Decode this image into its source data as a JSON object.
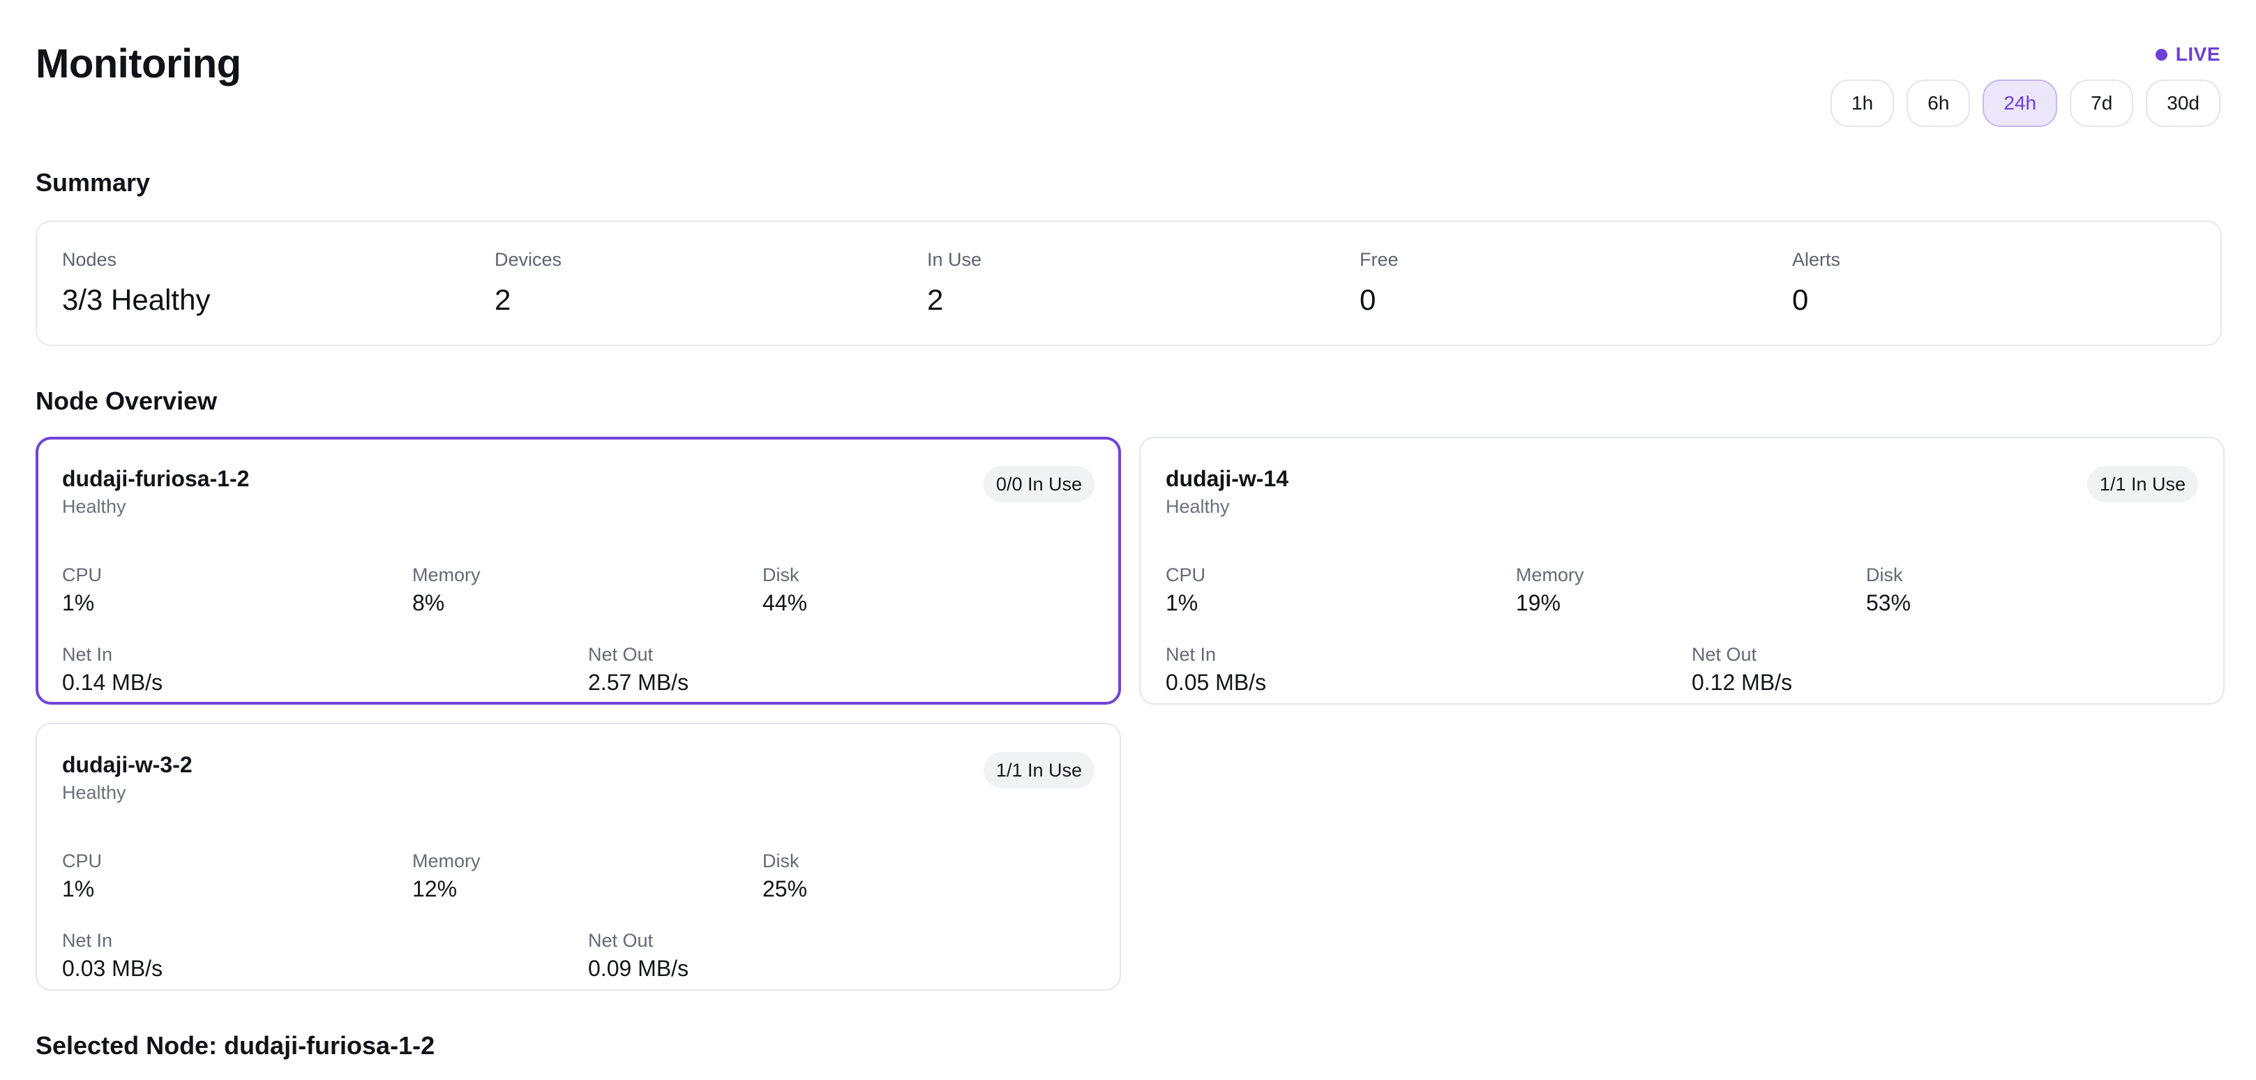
{
  "header": {
    "title": "Monitoring",
    "live_label": "LIVE",
    "accent_color": "#6d3fd6"
  },
  "time_ranges": {
    "options": [
      "1h",
      "6h",
      "24h",
      "7d",
      "30d"
    ],
    "selected": "24h"
  },
  "summary": {
    "heading": "Summary",
    "items": [
      {
        "label": "Nodes",
        "value": "3/3 Healthy"
      },
      {
        "label": "Devices",
        "value": "2"
      },
      {
        "label": "In Use",
        "value": "2"
      },
      {
        "label": "Free",
        "value": "0"
      },
      {
        "label": "Alerts",
        "value": "0"
      }
    ]
  },
  "node_overview": {
    "heading": "Node Overview",
    "metric_labels": {
      "cpu": "CPU",
      "memory": "Memory",
      "disk": "Disk",
      "net_in": "Net In",
      "net_out": "Net Out"
    },
    "nodes": [
      {
        "name": "dudaji-furiosa-1-2",
        "status": "Healthy",
        "badge": "0/0 In Use",
        "selected": true,
        "cpu": "1%",
        "memory": "8%",
        "disk": "44%",
        "net_in": "0.14 MB/s",
        "net_out": "2.57 MB/s"
      },
      {
        "name": "dudaji-w-14",
        "status": "Healthy",
        "badge": "1/1 In Use",
        "selected": false,
        "cpu": "1%",
        "memory": "19%",
        "disk": "53%",
        "net_in": "0.05 MB/s",
        "net_out": "0.12 MB/s"
      },
      {
        "name": "dudaji-w-3-2",
        "status": "Healthy",
        "badge": "1/1 In Use",
        "selected": false,
        "cpu": "1%",
        "memory": "12%",
        "disk": "25%",
        "net_in": "0.03 MB/s",
        "net_out": "0.09 MB/s"
      }
    ]
  },
  "selected_node": {
    "heading": "Selected Node: dudaji-furiosa-1-2"
  }
}
